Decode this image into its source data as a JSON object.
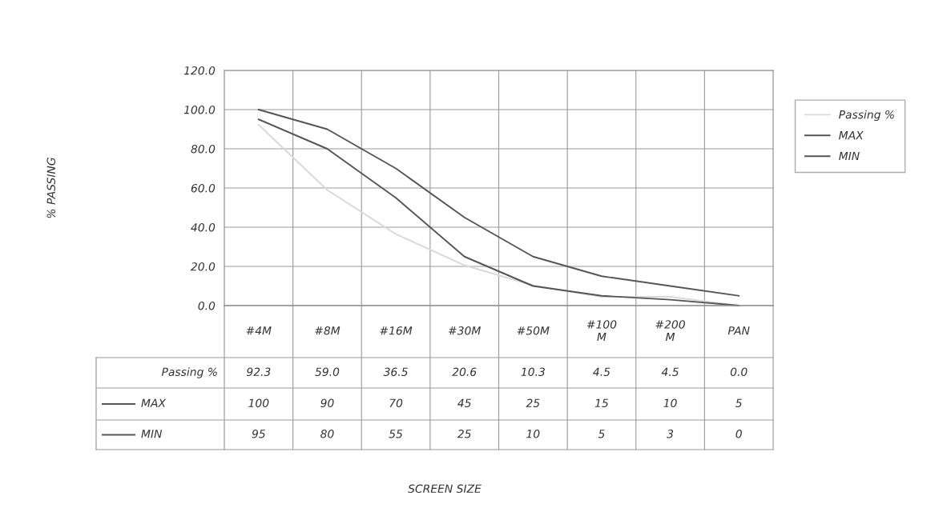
{
  "chart_data": {
    "type": "line",
    "annotations": [
      "% PASSING",
      "SCREEN SIZE"
    ],
    "categories": [
      "#4M",
      "#8M",
      "#16M",
      "#30M",
      "#50M",
      "#100\nM",
      "#200\nM",
      "PAN"
    ],
    "series": [
      {
        "name": "Passing %",
        "color": "#d9d9d9",
        "values": [
          92.3,
          59.0,
          36.5,
          20.6,
          10.3,
          4.5,
          4.5,
          0.0
        ],
        "value_labels": [
          "92.3",
          "59.0",
          "36.5",
          "20.6",
          "10.3",
          "4.5",
          "4.5",
          "0.0"
        ]
      },
      {
        "name": "MAX",
        "color": "#555555",
        "values": [
          100,
          90,
          70,
          45,
          25,
          15,
          10,
          5
        ],
        "value_labels": [
          "100",
          "90",
          "70",
          "45",
          "25",
          "15",
          "10",
          "5"
        ]
      },
      {
        "name": "MIN",
        "color": "#555555",
        "values": [
          95,
          80,
          55,
          25,
          10,
          5,
          3,
          0
        ],
        "value_labels": [
          "95",
          "80",
          "55",
          "25",
          "10",
          "5",
          "3",
          "0"
        ]
      }
    ],
    "ylim": [
      0,
      120
    ],
    "yticks": [
      {
        "value": 0,
        "label": "0.0"
      },
      {
        "value": 20,
        "label": "20.0"
      },
      {
        "value": 40,
        "label": "40.0"
      },
      {
        "value": 60,
        "label": "60.0"
      },
      {
        "value": 80,
        "label": "80.0"
      },
      {
        "value": 100,
        "label": "100.0"
      },
      {
        "value": 120,
        "label": "120.0"
      }
    ],
    "grid": true,
    "legend": "right",
    "marker": "none",
    "line_style": "solid"
  }
}
